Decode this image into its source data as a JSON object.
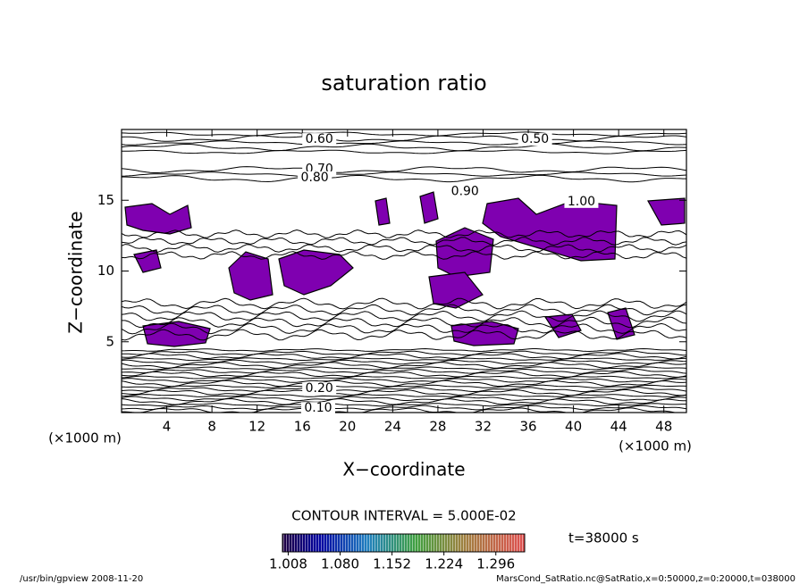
{
  "chart_data": {
    "type": "contour",
    "title": "saturation ratio",
    "x_label": "X−coordinate",
    "y_label": "Z−coordinate",
    "x_unit": "(×1000 m)",
    "y_unit": "(×1000 m)",
    "xlim": [
      0,
      50
    ],
    "ylim": [
      0,
      20
    ],
    "xticks": [
      4,
      8,
      12,
      16,
      20,
      24,
      28,
      32,
      36,
      40,
      44,
      48
    ],
    "yticks": [
      5,
      10,
      15
    ],
    "grid": false,
    "shade_color": "#7f00b0",
    "contour_labels": [
      {
        "value": 0.6,
        "label": "0.60",
        "x": 17.5,
        "y": 19.3
      },
      {
        "value": 0.5,
        "label": "0.50",
        "x": 36.6,
        "y": 19.3
      },
      {
        "value": 0.7,
        "label": "0.70",
        "x": 17.5,
        "y": 17.2
      },
      {
        "value": 0.8,
        "label": "0.80",
        "x": 17.1,
        "y": 16.6
      },
      {
        "value": 0.9,
        "label": "0.90",
        "x": 30.4,
        "y": 15.6
      },
      {
        "value": 1.0,
        "label": "1.00",
        "x": 40.7,
        "y": 14.9
      },
      {
        "value": 0.2,
        "label": "0.20",
        "x": 17.5,
        "y": 1.7
      },
      {
        "value": 0.1,
        "label": "0.10",
        "x": 17.4,
        "y": 0.3
      }
    ],
    "contour_interval": "CONTOUR INTERVAL = 5.000E-02",
    "time_label": "t=38000 s",
    "colorbar_lim": [
      1.0,
      1.336
    ],
    "colorbar_ticks": [
      1.008,
      {
        "value": 1.08,
        "label": "1.080"
      },
      1.152,
      1.224,
      1.296
    ],
    "footer_left": "/usr/bin/gpview  2008-11-20",
    "footer_right": "MarsCond_SatRatio.nc@SatRatio,x=0:50000,z=0:20000,t=038000"
  }
}
